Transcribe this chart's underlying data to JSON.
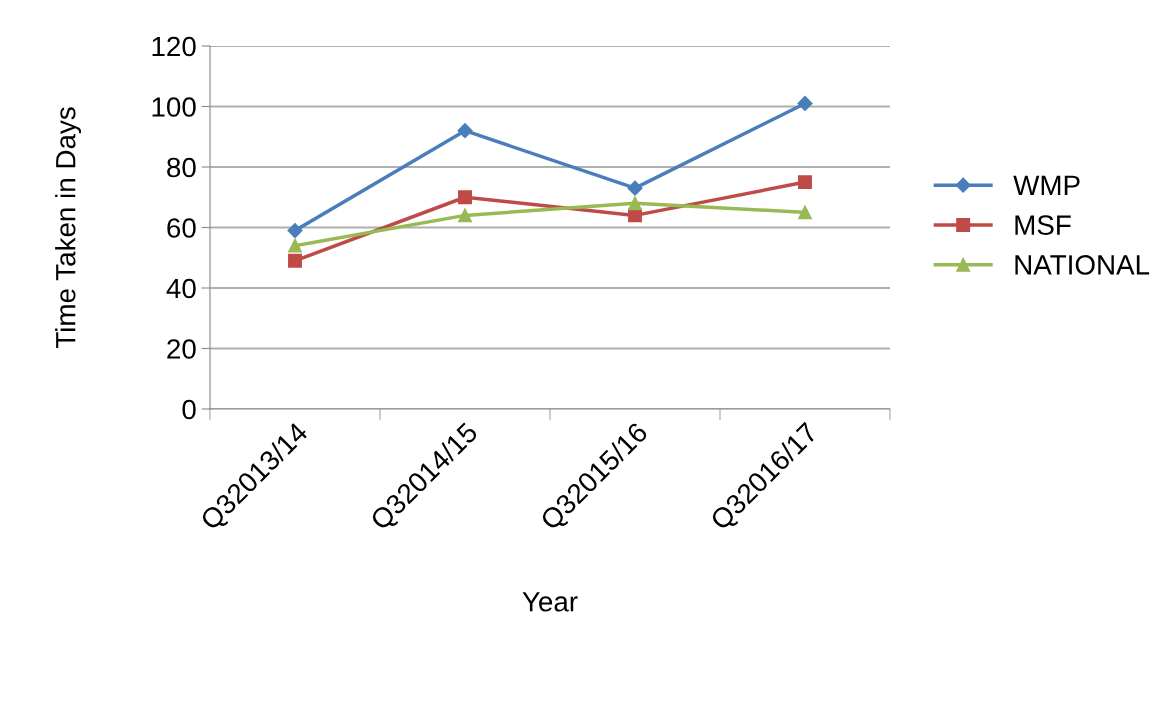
{
  "chart_data": {
    "type": "line",
    "xlabel": "Year",
    "ylabel": "Time Taken in Days",
    "categories": [
      "Q32013/14",
      "Q32014/15",
      "Q32015/16",
      "Q32016/17"
    ],
    "series": [
      {
        "name": "WMP",
        "color": "#4a7ebb",
        "values": [
          59,
          92,
          73,
          101
        ],
        "marker": "diamond"
      },
      {
        "name": "MSF",
        "color": "#be4b48",
        "values": [
          49,
          70,
          64,
          75
        ],
        "marker": "square"
      },
      {
        "name": "NATIONAL",
        "color": "#98b954",
        "values": [
          54,
          64,
          68,
          65
        ],
        "marker": "triangle"
      }
    ],
    "ylim": [
      0,
      120
    ],
    "yticks": [
      0,
      20,
      40,
      60,
      80,
      100,
      120
    ],
    "grid": "y",
    "legend": "right",
    "line_style": "solid"
  }
}
